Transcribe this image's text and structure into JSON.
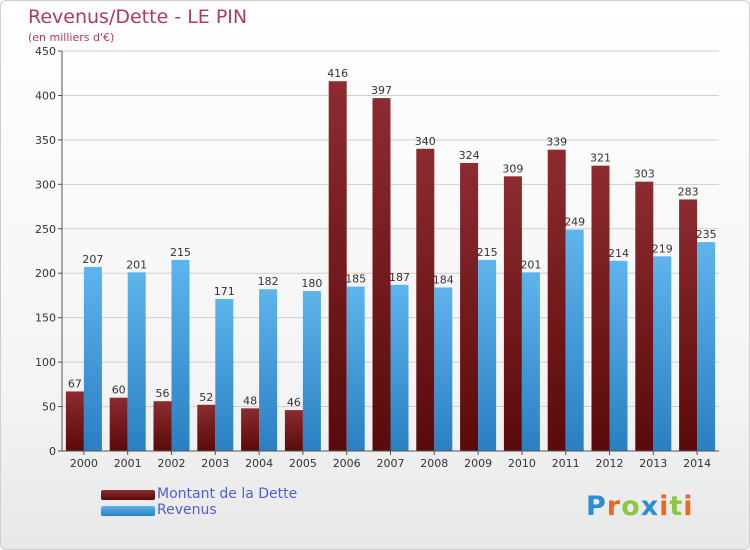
{
  "title": "Revenus/Dette - LE PIN",
  "subtitle": "(en milliers d'€)",
  "logo": {
    "text": "Proxiti",
    "letters": [
      "P",
      "r",
      "o",
      "x",
      "i",
      "t",
      "i"
    ],
    "colors": [
      "#2b8fd6",
      "#e86a1f",
      "#8dc63f",
      "#2b8fd6",
      "#e86a1f",
      "#8dc63f",
      "#e86a1f"
    ]
  },
  "colors": {
    "dette_top": "#8c2b30",
    "dette_bottom": "#5a0a0a",
    "revenus_top": "#5eb4ec",
    "revenus_bottom": "#2a7fc2",
    "grid": "#cfcfcf",
    "axis": "#555555"
  },
  "chart_data": {
    "type": "bar",
    "title": "Revenus/Dette - LE PIN",
    "ylabel": "(en milliers d'€)",
    "categories": [
      "2000",
      "2001",
      "2002",
      "2003",
      "2004",
      "2005",
      "2006",
      "2007",
      "2008",
      "2009",
      "2010",
      "2011",
      "2012",
      "2013",
      "2014"
    ],
    "series": [
      {
        "name": "Montant de la Dette",
        "values": [
          67,
          60,
          56,
          52,
          48,
          46,
          416,
          397,
          340,
          324,
          309,
          339,
          321,
          303,
          283
        ]
      },
      {
        "name": "Revenus",
        "values": [
          207,
          201,
          215,
          171,
          182,
          180,
          185,
          187,
          184,
          215,
          201,
          249,
          214,
          219,
          235
        ]
      }
    ],
    "ylim": [
      0,
      450
    ],
    "yticks": [
      0,
      50,
      100,
      150,
      200,
      250,
      300,
      350,
      400,
      450
    ],
    "grid": true,
    "legend": "bottom-left"
  }
}
